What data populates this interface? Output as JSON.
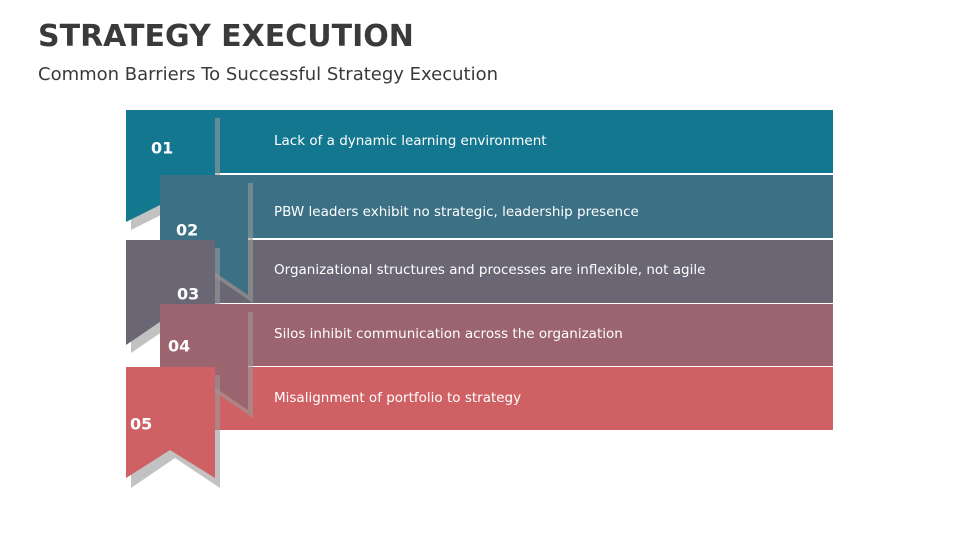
{
  "header": {
    "title": "STRATEGY EXECUTION",
    "subtitle": "Common Barriers To Successful Strategy Execution"
  },
  "items": [
    {
      "number": "01",
      "text": "Lack of a dynamic learning environment"
    },
    {
      "number": "02",
      "text": "PBW leaders exhibit no strategic, leadership presence"
    },
    {
      "number": "03",
      "text": "Organizational structures and processes are inflexible, not agile"
    },
    {
      "number": "04",
      "text": "Silos inhibit communication across the organization"
    },
    {
      "number": "05",
      "text": "Misalignment of portfolio to strategy"
    }
  ]
}
